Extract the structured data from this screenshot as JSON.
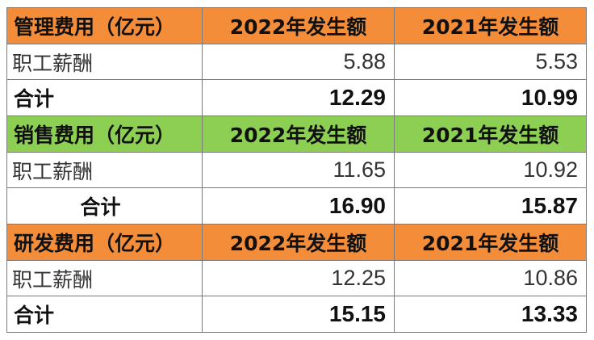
{
  "sections": [
    {
      "header": {
        "label": "管理费用（亿元）",
        "col2022": "2022年发生额",
        "col2021": "2021年发生额",
        "color": "#f48d3a"
      },
      "row": {
        "label": "职工薪酬",
        "v2022": "5.88",
        "v2021": "5.53"
      },
      "total": {
        "label": "合计",
        "v2022": "12.29",
        "v2021": "10.99"
      }
    },
    {
      "header": {
        "label": "销售费用（亿元）",
        "col2022": "2022年发生额",
        "col2021": "2021年发生额",
        "color": "#8ccf52"
      },
      "row": {
        "label": "职工薪酬",
        "v2022": "11.65",
        "v2021": "10.92"
      },
      "total": {
        "label": "合计",
        "v2022": "16.90",
        "v2021": "15.87"
      }
    },
    {
      "header": {
        "label": "研发费用（亿元）",
        "col2022": "2022年发生额",
        "col2021": "2021年发生额",
        "color": "#f48d3a"
      },
      "row": {
        "label": "职工薪酬",
        "v2022": "12.25",
        "v2021": "10.86"
      },
      "total": {
        "label": "合计",
        "v2022": "15.15",
        "v2021": "13.33"
      }
    }
  ]
}
